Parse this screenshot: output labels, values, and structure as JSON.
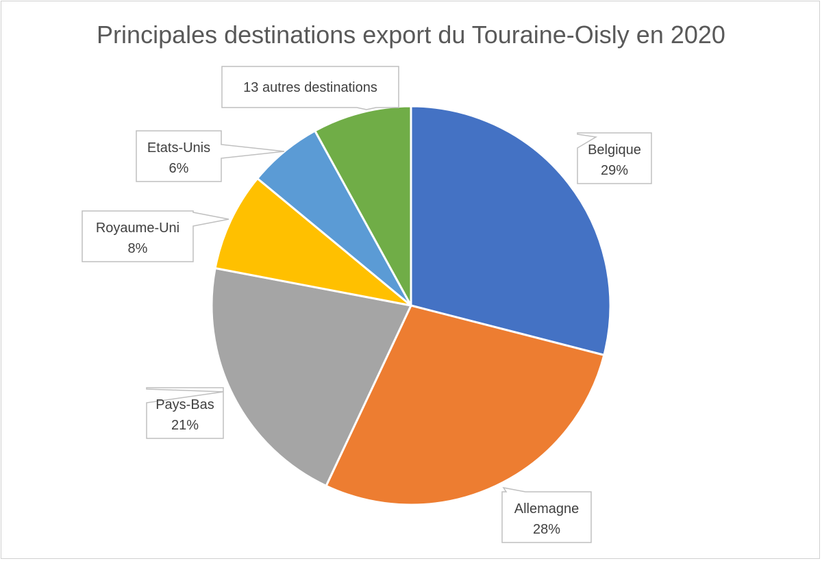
{
  "chart_data": {
    "type": "pie",
    "title": "Principales destinations export du Touraine-Oisly en 2020",
    "slices": [
      {
        "label": "Belgique",
        "value": 29,
        "pct_label": "29%",
        "color": "#4472C4"
      },
      {
        "label": "Allemagne",
        "value": 28,
        "pct_label": "28%",
        "color": "#ED7D31"
      },
      {
        "label": "Pays-Bas",
        "value": 21,
        "pct_label": "21%",
        "color": "#A5A5A5"
      },
      {
        "label": "Royaume-Uni",
        "value": 8,
        "pct_label": "8%",
        "color": "#FFC000"
      },
      {
        "label": "Etats-Unis",
        "value": 6,
        "pct_label": "6%",
        "color": "#5B9BD5"
      },
      {
        "label": "13 autres destinations",
        "value": 8,
        "pct_label": "",
        "color": "#70AD47"
      }
    ],
    "legend": "none"
  }
}
